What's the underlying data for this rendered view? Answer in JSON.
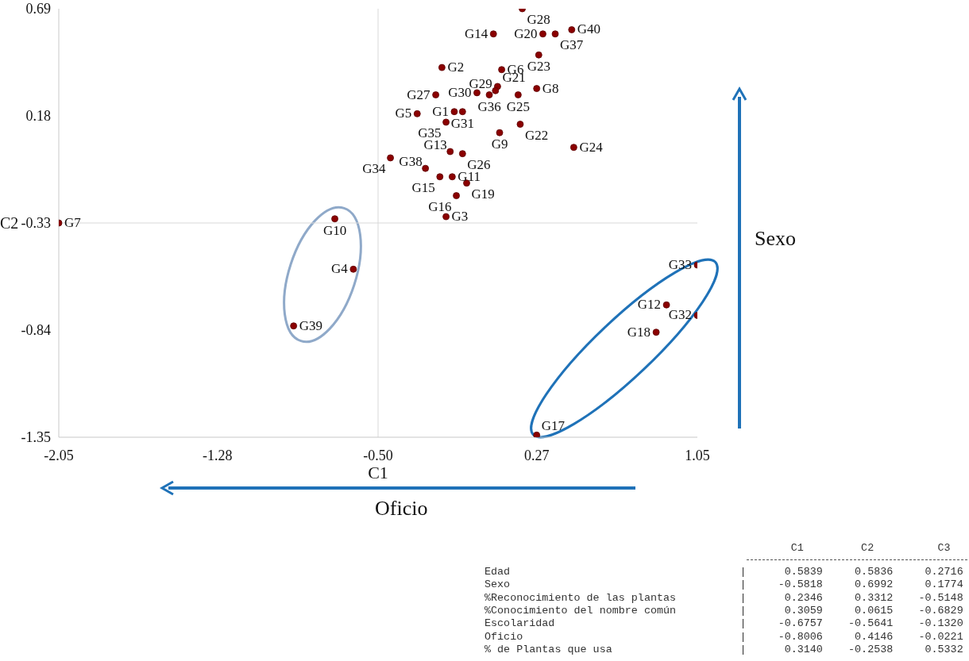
{
  "chart_data": {
    "type": "scatter",
    "xlabel": "C1",
    "ylabel": "C2",
    "xlim": [
      -2.05,
      1.05
    ],
    "xticks": [
      -2.05,
      -1.28,
      {
        "value": -0.5,
        "label": "-0.50"
      },
      0.27,
      1.05
    ],
    "ylim": [
      -1.35,
      0.69
    ],
    "yticks": [
      -1.35,
      -0.84,
      -0.33,
      0.18,
      0.69
    ],
    "marker": "circle",
    "ref_lines": [
      {
        "axis": "x",
        "value": -0.5,
        "color": "#d9d9d9"
      },
      {
        "axis": "y",
        "value": -0.33,
        "color": "#d9d9d9"
      }
    ],
    "series": [
      {
        "color": "#8b0000",
        "x": [
          -0.13,
          -0.19,
          -0.17,
          -0.62,
          -0.31,
          0.1,
          -2.05,
          0.27,
          0.09,
          -0.71,
          -0.14,
          0.9,
          -0.15,
          0.06,
          -0.2,
          -0.12,
          0.27,
          0.85,
          -0.07,
          0.3,
          0.08,
          0.19,
          0.28,
          0.45,
          0.18,
          -0.09,
          -0.22,
          0.2,
          0.07,
          -0.02,
          -0.09,
          1.05,
          1.05,
          -0.44,
          -0.17,
          0.04,
          0.36,
          -0.27,
          -0.91,
          0.44
        ],
        "values": [
          0.2,
          0.41,
          -0.3,
          -0.55,
          0.19,
          0.4,
          -0.33,
          0.31,
          0.1,
          -0.31,
          -0.11,
          -0.72,
          0.01,
          0.57,
          -0.11,
          -0.2,
          -1.34,
          -0.85,
          -0.14,
          0.57,
          0.32,
          0.14,
          0.47,
          0.03,
          0.28,
          0.0,
          0.28,
          0.69,
          0.3,
          0.29,
          0.2,
          -0.77,
          -0.53,
          -0.02,
          0.15,
          0.28,
          0.57,
          -0.07,
          -0.82,
          0.59
        ],
        "value_labels": [
          "G1",
          "G2",
          "G3",
          "G4",
          "G5",
          "G6",
          "G7",
          "G8",
          "G9",
          "G10",
          "G11",
          "G12",
          "G13",
          "G14",
          "G15",
          "G16",
          "G17",
          "G18",
          "G19",
          "G20",
          "G21",
          "G22",
          "G23",
          "G24",
          "G25",
          "G26",
          "G27",
          "G28",
          "G29",
          "G30",
          "G31",
          "G32",
          "G33",
          "G34",
          "G35",
          "G36",
          "G37",
          "G38",
          "G39",
          "G40"
        ]
      }
    ],
    "annotations": [
      "Sexo",
      "Oficio",
      "C1 C2 C3",
      "Edad | 0.5839 0.5836 0.2716",
      "Sexo | -0.5818 0.6992 0.1774",
      "%Reconocimiento de las plantas | 0.2346 0.3312 -0.5148",
      "%Conocimiento del nombre común | 0.3059 0.0615 -0.6829",
      "Escolaridad | -0.6757 -0.5641 -0.1320",
      "Oficio | -0.8006 0.4146 -0.0221",
      "% de Plantas que usa | 0.3140 -0.2538 0.5332"
    ]
  }
}
